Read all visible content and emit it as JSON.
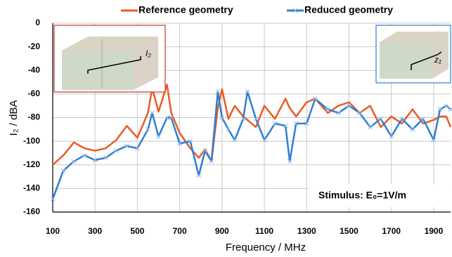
{
  "chart_data": {
    "type": "line",
    "xlabel": "Frequency / MHz",
    "ylabel": "I₂ / dBA",
    "annotations": [
      "Stimulus: E₀=1V/m",
      "I₂",
      "z₁"
    ],
    "x": [
      100,
      150,
      200,
      250,
      300,
      350,
      400,
      450,
      500,
      550,
      570,
      600,
      640,
      660,
      700,
      750,
      790,
      820,
      850,
      880,
      900,
      930,
      960,
      1000,
      1020,
      1060,
      1100,
      1150,
      1200,
      1220,
      1250,
      1300,
      1340,
      1400,
      1450,
      1500,
      1550,
      1600,
      1650,
      1700,
      1750,
      1800,
      1850,
      1900,
      1930,
      1960,
      1980
    ],
    "series": [
      {
        "name": "Reference geometry",
        "color": "#ed5a24",
        "marker": false,
        "values": [
          -120,
          -112,
          -101,
          -106,
          -108,
          -106,
          -99,
          -87,
          -97,
          -76,
          -55,
          -75,
          -52,
          -76,
          -93,
          -106,
          -114,
          -107,
          -117,
          -72,
          -56,
          -81,
          -70,
          -79,
          -82,
          -88,
          -70,
          -81,
          -64,
          -72,
          -79,
          -67,
          -64,
          -76,
          -70,
          -67,
          -76,
          -70,
          -88,
          -79,
          -85,
          -73,
          -85,
          -82,
          -79,
          -79,
          -88
        ]
      },
      {
        "name": "Reduced geometry",
        "color": "#2f7fd0",
        "marker": true,
        "values": [
          -149,
          -125,
          -117,
          -112,
          -116,
          -114,
          -108,
          -104,
          -106,
          -90,
          -76,
          -96,
          -80,
          -80,
          -102,
          -100,
          -129,
          -108,
          -117,
          -58,
          -80,
          -90,
          -99,
          -81,
          -58,
          -81,
          -99,
          -85,
          -87,
          -117,
          -85,
          -85,
          -64,
          -73,
          -76,
          -70,
          -76,
          -88,
          -81,
          -96,
          -81,
          -90,
          -81,
          -99,
          -73,
          -70,
          -73
        ]
      }
    ],
    "xlim": [
      100,
      1980
    ],
    "ylim": [
      -160,
      0
    ],
    "xticks": [
      100,
      300,
      500,
      700,
      900,
      1100,
      1300,
      1500,
      1700,
      1900
    ],
    "yticks": [
      0,
      -20,
      -40,
      -60,
      -80,
      -100,
      -120,
      -140,
      -160
    ],
    "grid": true
  }
}
